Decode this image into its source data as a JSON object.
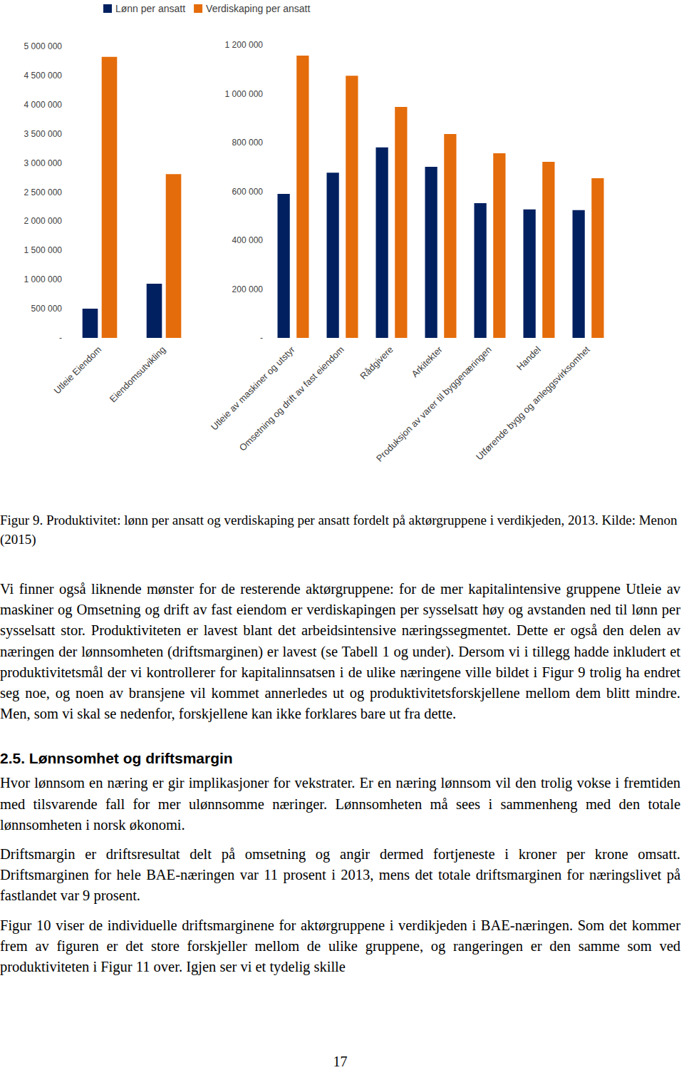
{
  "chart_data": [
    {
      "type": "bar",
      "legend": "top",
      "categories": [
        "Utleie Eiendom",
        "Eiendomsutvikling"
      ],
      "series": [
        {
          "name": "Lønn per ansatt",
          "color": "#002060",
          "values": [
            500000,
            930000
          ]
        },
        {
          "name": "Verdiskaping per ansatt",
          "color": "#e46c0a",
          "values": [
            4820000,
            2810000
          ]
        }
      ],
      "ylim": [
        0,
        5000000
      ],
      "yticks": [
        {
          "value": 0,
          "label": "-"
        },
        {
          "value": 500000,
          "label": "500 000"
        },
        {
          "value": 1000000,
          "label": "1 000 000"
        },
        {
          "value": 1500000,
          "label": "1 500 000"
        },
        {
          "value": 2000000,
          "label": "2 000 000"
        },
        {
          "value": 2500000,
          "label": "2 500 000"
        },
        {
          "value": 3000000,
          "label": "3 000 000"
        },
        {
          "value": 3500000,
          "label": "3 500 000"
        },
        {
          "value": 4000000,
          "label": "4 000 000"
        },
        {
          "value": 4500000,
          "label": "4 500 000"
        },
        {
          "value": 5000000,
          "label": "5 000 000"
        }
      ],
      "grid": false
    },
    {
      "type": "bar",
      "categories": [
        "Utleie av maskiner og utstyr",
        "Omsetning og drift av fast eiendom",
        "Rådgivere",
        "Arkitekter",
        "Produksjon av varer til byggenæringen",
        "Handel",
        "Utførende bygg og anleggsvirksomhet"
      ],
      "series": [
        {
          "name": "Lønn per ansatt",
          "color": "#002060",
          "values": [
            590000,
            677000,
            780000,
            701000,
            552000,
            526000,
            523000
          ]
        },
        {
          "name": "Verdiskaping per ansatt",
          "color": "#e46c0a",
          "values": [
            1156000,
            1074000,
            946000,
            835000,
            756000,
            721000,
            654000
          ]
        }
      ],
      "ylim": [
        0,
        1200000
      ],
      "yticks": [
        {
          "value": 0,
          "label": "-"
        },
        {
          "value": 200000,
          "label": "200 000"
        },
        {
          "value": 400000,
          "label": "400 000"
        },
        {
          "value": 600000,
          "label": "600 000"
        },
        {
          "value": 800000,
          "label": "800 000"
        },
        {
          "value": 1000000,
          "label": "1 000 000"
        },
        {
          "value": 1200000,
          "label": "1 200 000"
        }
      ],
      "grid": false
    }
  ],
  "document": {
    "caption": "Figur 9. Produktivitet: lønn per ansatt og verdiskaping per ansatt fordelt på aktørgruppene i verdikjeden, 2013. Kilde: Menon (2015)",
    "paragraphs_before": [
      "Vi finner også liknende mønster for de resterende aktørgruppene: for de mer kapitalintensive gruppene Utleie av maskiner og Omsetning og drift av fast eiendom er verdiskapingen per sysselsatt høy og avstanden ned til lønn per sysselsatt stor. Produktiviteten er lavest blant det arbeidsintensive næringssegmentet. Dette er også den delen av næringen der lønnsomheten (driftsmarginen) er lavest (se Tabell 1 og under). Dersom vi i tillegg hadde inkludert et produktivitetsmål der vi kontrollerer for kapitalinnsatsen i de ulike næringene ville bildet i Figur 9 trolig ha endret seg noe, og noen av bransjene vil kommet annerledes ut og produktivitetsforskjellene mellom dem blitt mindre. Men, som vi skal se nedenfor, forskjellene kan ikke forklares bare ut fra dette."
    ],
    "section": {
      "heading": "2.5. Lønnsomhet og driftsmargin",
      "paragraphs": [
        "Hvor lønnsom en næring er gir implikasjoner for vekstrater. Er en næring lønnsom vil den trolig vokse i fremtiden med tilsvarende fall for mer ulønnsomme næringer. Lønnsomheten må sees i sammenheng med den totale lønnsomheten i norsk økonomi.",
        "Driftsmargin er driftsresultat delt på omsetning og angir dermed fortjeneste i kroner per krone omsatt. Driftsmarginen for hele BAE-næringen var 11 prosent i 2013, mens det totale driftsmarginen for næringslivet på fastlandet var 9 prosent.",
        "Figur 10 viser de individuelle driftsmarginene for aktørgruppene i verdikjeden i BAE-næringen. Som det kommer frem av figuren er det store forskjeller mellom de ulike gruppene, og rangeringen er den samme som ved produktiviteten i Figur 11 over. Igjen ser vi et tydelig skille"
      ]
    },
    "page_number": "17"
  }
}
